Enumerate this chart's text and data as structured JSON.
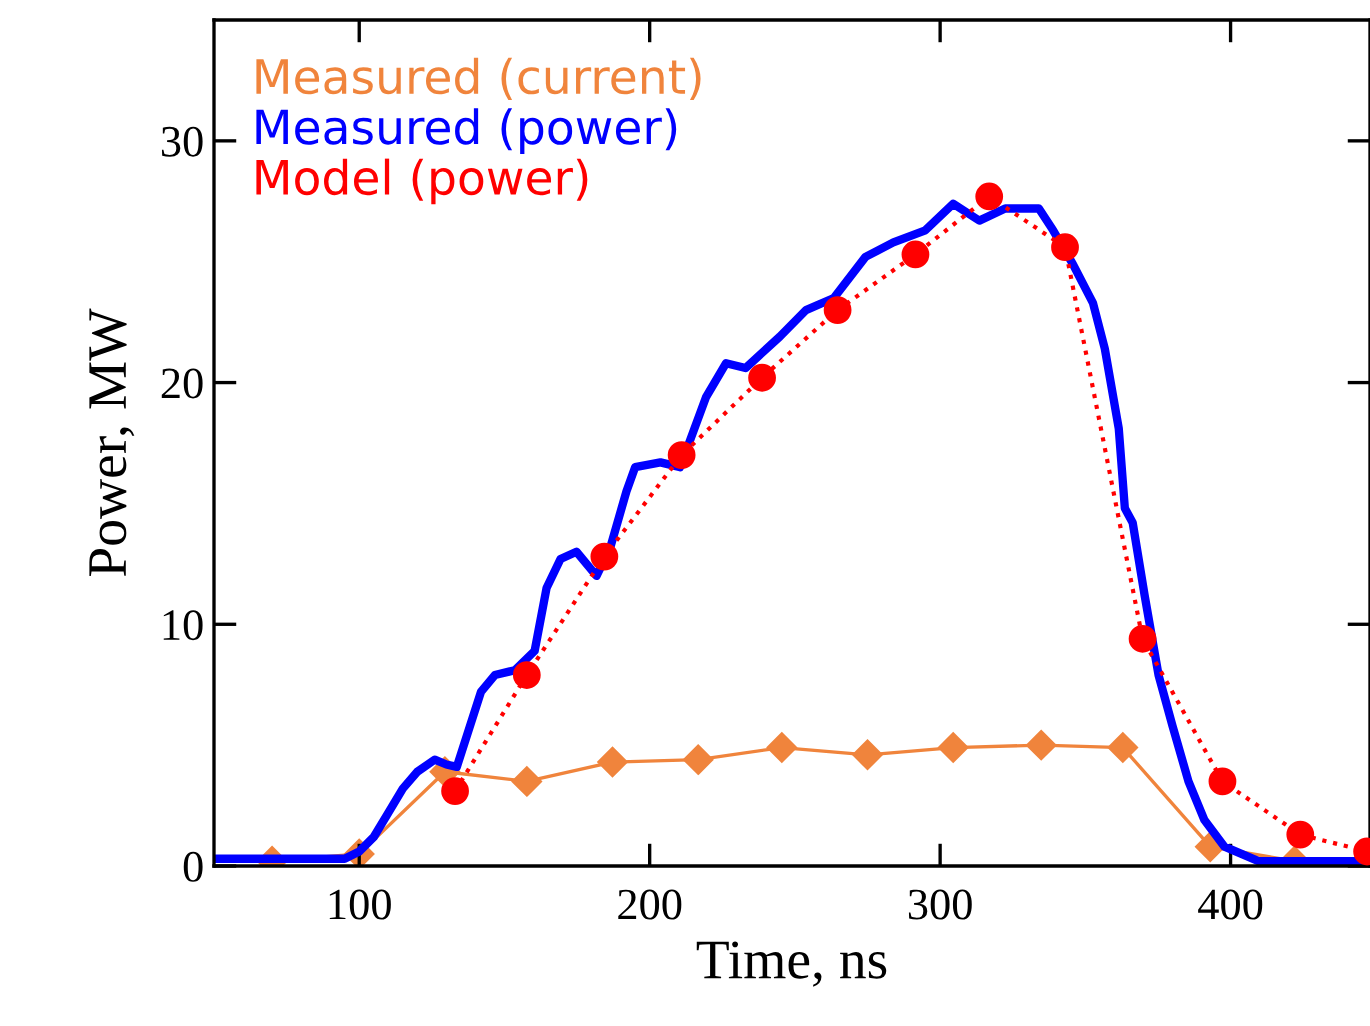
{
  "chart_data": {
    "type": "line",
    "xlabel": "Time, ns",
    "ylabel": "Power, MW",
    "xlim": [
      50,
      448
    ],
    "xticks": [
      100,
      200,
      300,
      400
    ],
    "ylim": [
      0,
      35
    ],
    "yticks": [
      0,
      10,
      20,
      30
    ],
    "grid": false,
    "legend": "top left",
    "series": [
      {
        "name": "Measured (current)",
        "color": "#f0843c",
        "marker": "diamond",
        "line_style": "solid",
        "x": [
          70,
          100,
          129.5,
          157.7,
          187.2,
          216.7,
          245.5,
          275,
          304.5,
          334.8,
          362.9,
          393,
          422
        ],
        "values": [
          0.2,
          0.5,
          3.9,
          3.5,
          4.3,
          4.4,
          4.9,
          4.6,
          4.9,
          5.0,
          4.9,
          0.8,
          0.2
        ]
      },
      {
        "name": "Measured (power)",
        "color": "#0000ff",
        "marker": "none",
        "line_style": "solid",
        "x": [
          50,
          95,
          100,
          105,
          110,
          115,
          120,
          126,
          130,
          133.6,
          141.9,
          146.7,
          153.6,
          160.4,
          164.5,
          169.3,
          174.8,
          181.7,
          186.5,
          192,
          195,
          203.7,
          210.5,
          219.4,
          226.3,
          233,
          244.8,
          253.8,
          263.4,
          274.3,
          283.9,
          294.9,
          304.5,
          313.5,
          322.4,
          334,
          338.9,
          345.7,
          352.6,
          356.7,
          361.5,
          363.6,
          366.3,
          370.4,
          375.2,
          380,
          385.5,
          391,
          397.9,
          409.6,
          448
        ],
        "values": [
          0.3,
          0.3,
          0.6,
          1.2,
          2.2,
          3.2,
          3.9,
          4.4,
          4.2,
          4.1,
          7.2,
          7.9,
          8.1,
          8.9,
          11.5,
          12.7,
          13.0,
          12.0,
          13.2,
          15.5,
          16.5,
          16.7,
          16.5,
          19.4,
          20.8,
          20.6,
          21.9,
          23.0,
          23.5,
          25.2,
          25.8,
          26.3,
          27.4,
          26.7,
          27.2,
          27.2,
          26.3,
          24.9,
          23.3,
          21.4,
          18.1,
          14.8,
          14.2,
          11.2,
          7.9,
          5.8,
          3.5,
          1.9,
          0.8,
          0.2,
          0.2
        ]
      },
      {
        "name": "Model (power)",
        "color": "#ff0000",
        "marker": "circle",
        "line_style": "dotted",
        "x": [
          133,
          157.7,
          184.4,
          211,
          238.7,
          264.7,
          291.5,
          316.9,
          343,
          369.7,
          397.2,
          424,
          447
        ],
        "values": [
          3.1,
          7.9,
          12.8,
          17.0,
          20.2,
          23.0,
          25.3,
          27.7,
          25.6,
          9.4,
          3.5,
          1.3,
          0.6
        ]
      }
    ]
  }
}
